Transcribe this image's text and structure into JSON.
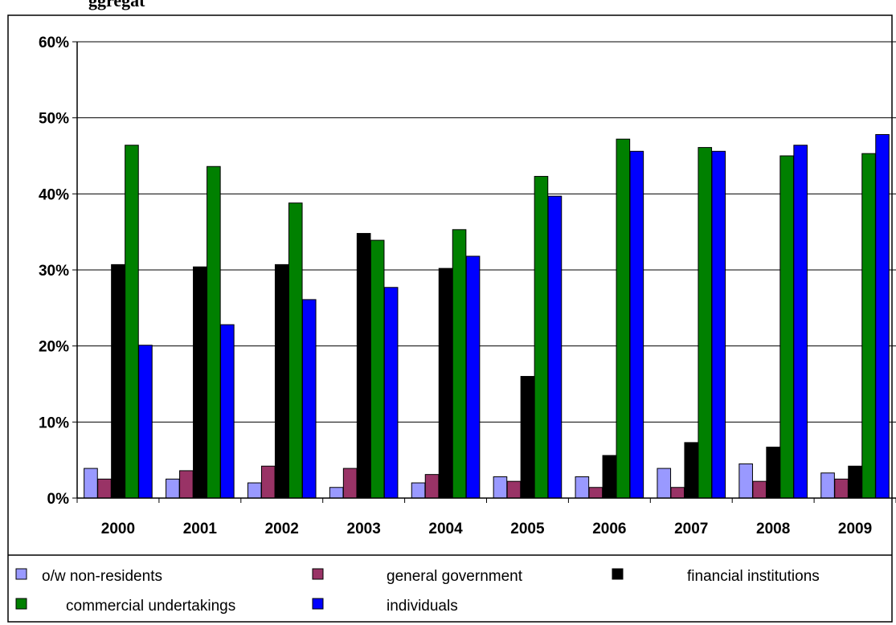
{
  "page_title_fragment": "ggregat",
  "chart_data": {
    "type": "bar",
    "categories": [
      "2000",
      "2001",
      "2002",
      "2003",
      "2004",
      "2005",
      "2006",
      "2007",
      "2008",
      "2009"
    ],
    "ylim": [
      0,
      60
    ],
    "yticks": [
      0,
      10,
      20,
      30,
      40,
      50,
      60
    ],
    "ytick_labels": [
      "0%",
      "10%",
      "20%",
      "30%",
      "40%",
      "50%",
      "60%"
    ],
    "grid": true,
    "legend_position": "bottom",
    "series": [
      {
        "name": "o/w non-residents",
        "color": "#9999ff",
        "values": [
          3.9,
          2.5,
          2.0,
          1.4,
          2.0,
          2.8,
          2.8,
          3.9,
          4.5,
          3.3
        ]
      },
      {
        "name": "general government",
        "color": "#993366",
        "values": [
          2.5,
          3.6,
          4.2,
          3.9,
          3.1,
          2.2,
          1.4,
          1.4,
          2.2,
          2.5
        ]
      },
      {
        "name": "financial institutions",
        "color": "#000000",
        "values": [
          30.7,
          30.4,
          30.7,
          34.8,
          30.2,
          16.0,
          5.6,
          7.3,
          6.7,
          4.2
        ]
      },
      {
        "name": "commercial undertakings",
        "color": "#008000",
        "values": [
          46.4,
          43.6,
          38.8,
          33.9,
          35.3,
          42.3,
          47.2,
          46.1,
          45.0,
          45.3
        ]
      },
      {
        "name": "individuals",
        "color": "#0000ff",
        "values": [
          20.1,
          22.8,
          26.1,
          27.7,
          31.8,
          39.7,
          45.6,
          45.6,
          46.4,
          47.8
        ]
      }
    ]
  }
}
